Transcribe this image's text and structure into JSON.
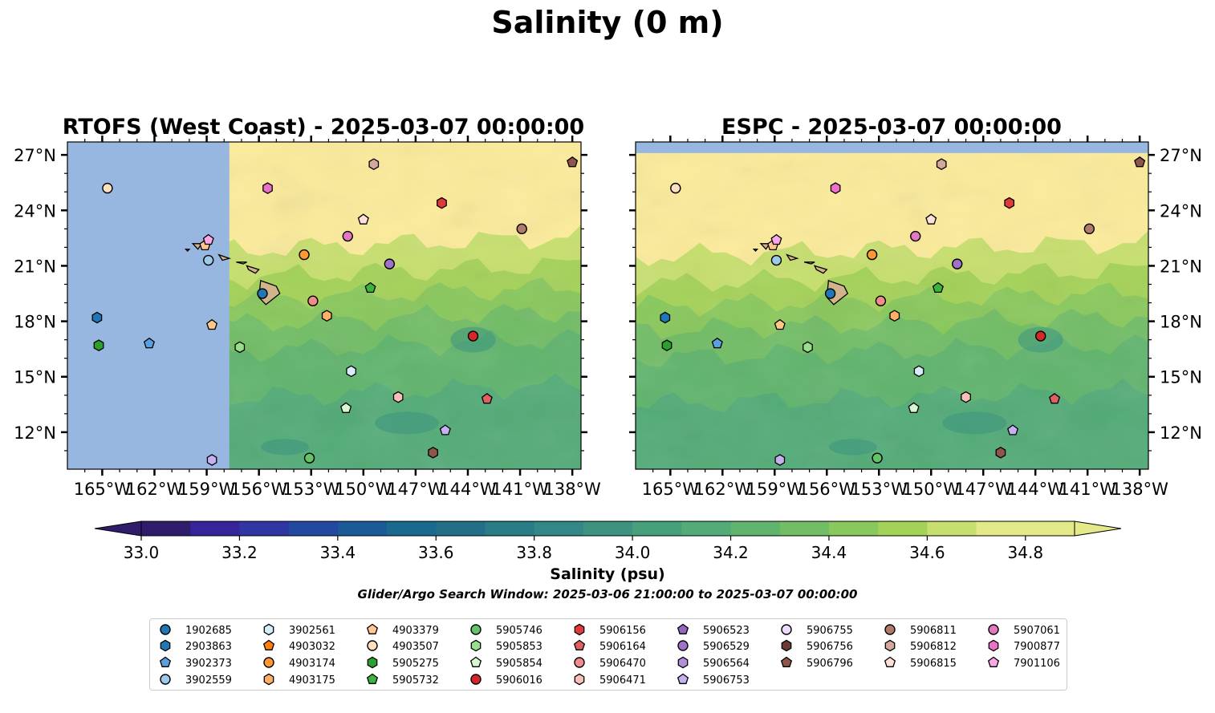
{
  "figure": {
    "suptitle": "Salinity (0 m)",
    "search_window": "Glider/Argo Search Window: 2025-03-06 21:00:00 to 2025-03-07 00:00:00"
  },
  "chart_data": [
    {
      "type": "heatmap",
      "title": "RTOFS (West Coast) - 2025-03-07 00:00:00",
      "x_range": [
        -167.0,
        -137.5
      ],
      "y_range": [
        10.0,
        27.7
      ],
      "x_ticks": [
        "165°W",
        "162°W",
        "159°W",
        "156°W",
        "153°W",
        "150°W",
        "147°W",
        "144°W",
        "141°W",
        "138°W"
      ],
      "y_ticks": [
        "12°N",
        "15°N",
        "18°N",
        "21°N",
        "24°N",
        "27°N"
      ],
      "y_tick_side": "left",
      "field_note": "no data west of 157.7°W",
      "nodata_west_of": -157.7
    },
    {
      "type": "heatmap",
      "title": "ESPC - 2025-03-07 00:00:00",
      "x_range": [
        -167.0,
        -137.5
      ],
      "y_range": [
        10.0,
        27.7
      ],
      "x_ticks": [
        "165°W",
        "162°W",
        "159°W",
        "156°W",
        "153°W",
        "150°W",
        "147°W",
        "144°W",
        "141°W",
        "138°W"
      ],
      "y_ticks": [
        "12°N",
        "15°N",
        "18°N",
        "21°N",
        "24°N",
        "27°N"
      ],
      "y_tick_side": "right",
      "nodata_north_of": 27.1
    }
  ],
  "colorbar": {
    "label": "Salinity (psu)",
    "min": 32.9,
    "max": 34.9,
    "tick_labels": [
      "33.0",
      "33.2",
      "33.4",
      "33.6",
      "33.8",
      "34.0",
      "34.2",
      "34.4",
      "34.6",
      "34.8"
    ],
    "colors": [
      "#2f1c6b",
      "#35249a",
      "#3035a4",
      "#22489f",
      "#1a5a96",
      "#1a6a8f",
      "#226f87",
      "#2a7c87",
      "#338786",
      "#3d9380",
      "#47a07c",
      "#53ab77",
      "#60b46d",
      "#72bd66",
      "#89c85c",
      "#a4d258",
      "#c7df6e",
      "#e4e98a"
    ]
  },
  "floats": [
    {
      "id": "1902685",
      "lon": -155.8,
      "lat": 19.5,
      "marker": "circle",
      "color": "#1f77b4"
    },
    {
      "id": "2903863",
      "lon": -165.3,
      "lat": 18.2,
      "marker": "hexagon",
      "color": "#1f77b4"
    },
    {
      "id": "3902373",
      "lon": -162.3,
      "lat": 16.8,
      "marker": "pentagon",
      "color": "#5aa0e0"
    },
    {
      "id": "3902559",
      "lon": -158.9,
      "lat": 21.3,
      "marker": "circle",
      "color": "#9ecae9"
    },
    {
      "id": "3902561",
      "lon": -150.7,
      "lat": 15.3,
      "marker": "hexagon",
      "color": "#d6ecfa"
    },
    {
      "id": "4903032",
      "lon": -168.0,
      "lat": 24.0,
      "marker": "pentagon",
      "color": "#ff7f0e",
      "offscreen": true
    },
    {
      "id": "4903174",
      "lon": -153.4,
      "lat": 21.6,
      "marker": "circle",
      "color": "#ff9833"
    },
    {
      "id": "4903175",
      "lon": -152.1,
      "lat": 18.3,
      "marker": "hexagon",
      "color": "#ffb066"
    },
    {
      "id": "4903379",
      "lon": -159.1,
      "lat": 22.1,
      "marker": "pentagon",
      "color": "#ffc88a"
    },
    {
      "id": "4903507",
      "lon": -164.7,
      "lat": 25.2,
      "marker": "circle",
      "color": "#fee0c0"
    },
    {
      "id": "5905275",
      "lon": -165.2,
      "lat": 16.7,
      "marker": "hexagon",
      "color": "#2ca02c"
    },
    {
      "id": "5905732",
      "lon": -149.6,
      "lat": 19.8,
      "marker": "pentagon",
      "color": "#3cb43c"
    },
    {
      "id": "5905746",
      "lon": -153.1,
      "lat": 10.6,
      "marker": "circle",
      "color": "#66c266"
    },
    {
      "id": "5905853",
      "lon": -157.1,
      "lat": 16.6,
      "marker": "hexagon",
      "color": "#98df8a"
    },
    {
      "id": "5905854",
      "lon": -151.0,
      "lat": 13.3,
      "marker": "pentagon",
      "color": "#d8f7d0"
    },
    {
      "id": "5906016",
      "lon": -143.7,
      "lat": 17.2,
      "marker": "circle",
      "color": "#d62728"
    },
    {
      "id": "5906156",
      "lon": -145.5,
      "lat": 24.4,
      "marker": "hexagon",
      "color": "#e03a3a"
    },
    {
      "id": "5906164",
      "lon": -142.9,
      "lat": 13.8,
      "marker": "pentagon",
      "color": "#e06060"
    },
    {
      "id": "5906470",
      "lon": -152.9,
      "lat": 19.1,
      "marker": "circle",
      "color": "#f08c8c"
    },
    {
      "id": "5906471",
      "lon": -148.0,
      "lat": 13.9,
      "marker": "hexagon",
      "color": "#f7c0b8"
    },
    {
      "id": "5906523",
      "lon": -168.0,
      "lat": 12.0,
      "marker": "pentagon",
      "color": "#9467bd",
      "offscreen": true
    },
    {
      "id": "5906529",
      "lon": -148.5,
      "lat": 21.1,
      "marker": "circle",
      "color": "#9e72c8"
    },
    {
      "id": "5906564",
      "lon": -168.0,
      "lat": 14.0,
      "marker": "hexagon",
      "color": "#b48fdb",
      "offscreen": true
    },
    {
      "id": "5906753",
      "lon": -145.3,
      "lat": 12.1,
      "marker": "pentagon",
      "color": "#c5b0f0"
    },
    {
      "id": "5906755",
      "lon": -168.0,
      "lat": 20.0,
      "marker": "circle",
      "color": "#eedcff",
      "offscreen": true
    },
    {
      "id": "5906756",
      "lon": -168.0,
      "lat": 22.0,
      "marker": "hexagon",
      "color": "#6b3b33",
      "offscreen": true
    },
    {
      "id": "5906796",
      "lon": -138.0,
      "lat": 26.6,
      "marker": "pentagon",
      "color": "#8c564b"
    },
    {
      "id": "5906811",
      "lon": -140.9,
      "lat": 23.0,
      "marker": "circle",
      "color": "#b07a6c"
    },
    {
      "id": "5906812",
      "lon": -149.4,
      "lat": 26.5,
      "marker": "hexagon",
      "color": "#d4a89a"
    },
    {
      "id": "5906815",
      "lon": -150.0,
      "lat": 23.5,
      "marker": "pentagon",
      "color": "#fde0d8"
    },
    {
      "id": "5907061",
      "lon": -150.9,
      "lat": 22.6,
      "marker": "circle",
      "color": "#e377c2"
    },
    {
      "id": "7900877",
      "lon": -155.5,
      "lat": 25.2,
      "marker": "hexagon",
      "color": "#ea70c8"
    },
    {
      "id": "7901106",
      "lon": -158.9,
      "lat": 22.4,
      "marker": "pentagon",
      "color": "#f7a8e6"
    },
    {
      "id": "extra-orange-hex",
      "lon": -156.8,
      "lat": 18.3,
      "marker": "hexagon",
      "color": "#ffb066",
      "offscreen": true
    },
    {
      "id": "extra-lavender",
      "lon": -158.7,
      "lat": 10.5,
      "marker": "hexagon",
      "color": "#c5b0f0"
    },
    {
      "id": "extra-brown",
      "lon": -146.0,
      "lat": 10.9,
      "marker": "hexagon",
      "color": "#8c564b"
    },
    {
      "id": "extra-orange-pent",
      "lon": -158.7,
      "lat": 17.8,
      "marker": "pentagon",
      "color": "#ffc88a"
    }
  ],
  "legend": {
    "columns": [
      [
        "1902685",
        "2903863",
        "3902373",
        "3902559"
      ],
      [
        "3902561",
        "4903032",
        "4903174",
        "4903175"
      ],
      [
        "4903379",
        "4903507",
        "5905275",
        "5905732"
      ],
      [
        "5905746",
        "5905853",
        "5905854",
        "5906016"
      ],
      [
        "5906156",
        "5906164",
        "5906470",
        "5906471"
      ],
      [
        "5906523",
        "5906529",
        "5906564",
        "5906753"
      ],
      [
        "5906755",
        "5906756",
        "5906796"
      ],
      [
        "5906811",
        "5906812",
        "5906815"
      ],
      [
        "5907061",
        "7900877",
        "7901106"
      ]
    ]
  },
  "colors": {
    "nodata": "#97b7e0",
    "land": "#d2b48c",
    "high_salinity": "#fbeb9a"
  }
}
